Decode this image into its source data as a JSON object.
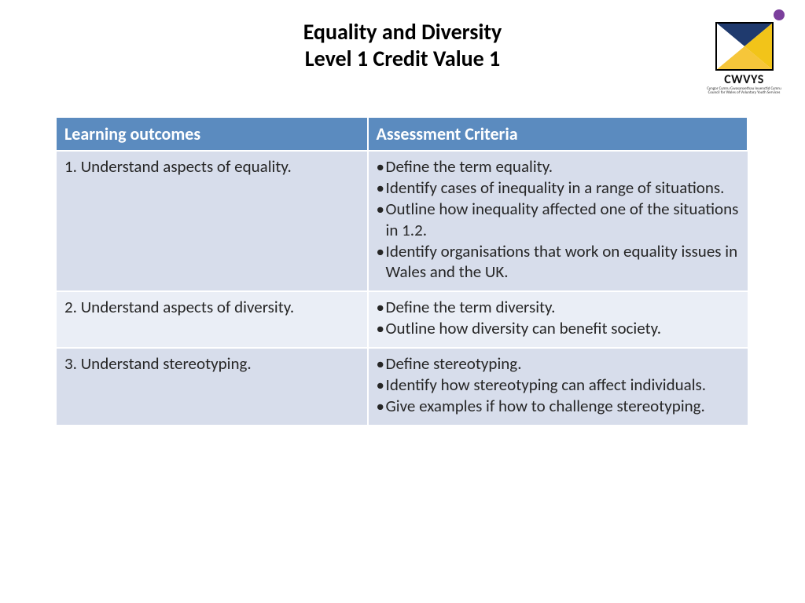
{
  "title": {
    "line1": "Equality and Diversity",
    "line2": "Level 1 Credit Value 1"
  },
  "logo": {
    "text": "CWVYS",
    "sub1": "Cyngor Cymru Gwasanaethau Ieuenctid Cymru",
    "sub2": "Council for Wales of Voluntary Youth Services",
    "dot_color": "#7b3f9c",
    "tri_colors": {
      "left": "#ffffff",
      "top": "#1f3a6e",
      "right": "#f2c419",
      "bottom": "#f6c63a"
    },
    "border": "#000000"
  },
  "table": {
    "header_bg": "#5b8bbf",
    "header_fg": "#ffffff",
    "header_fontsize": 22,
    "row_colors": [
      "#d7ddeb",
      "#eaeef6",
      "#d7ddeb"
    ],
    "cell_fg": "#262626",
    "divider": "#ffffff",
    "col_widths": [
      "45%",
      "55%"
    ],
    "columns": [
      "Learning outcomes",
      "Assessment Criteria"
    ],
    "rows": [
      {
        "outcome": "1. Understand aspects of equality.",
        "criteria": [
          "Define the term equality.",
          "Identify cases of inequality in a range of situations.",
          "Outline how inequality affected one of the situations in 1.2.",
          "Identify organisations that work on equality issues in Wales and the UK."
        ]
      },
      {
        "outcome": "2. Understand aspects of diversity.",
        "criteria": [
          "Define the term diversity.",
          "Outline how diversity can benefit society."
        ]
      },
      {
        "outcome": "3. Understand stereotyping.",
        "criteria": [
          "Define stereotyping.",
          "Identify how stereotyping can affect individuals.",
          "Give examples if how to challenge stereotyping."
        ]
      }
    ]
  }
}
